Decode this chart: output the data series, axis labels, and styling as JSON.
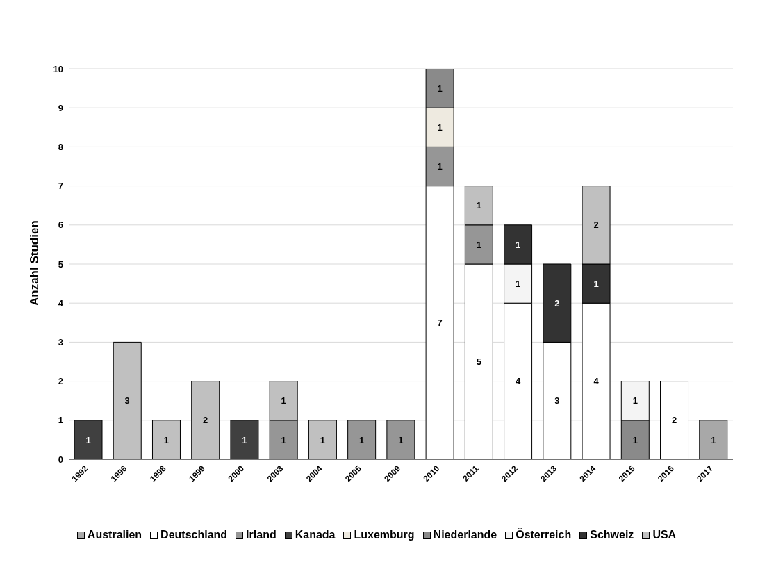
{
  "chart_data": {
    "type": "bar",
    "stacked": true,
    "ylabel": "Anzahl Studien",
    "categories": [
      "1992",
      "1996",
      "1998",
      "1999",
      "2000",
      "2003",
      "2004",
      "2005",
      "2009",
      "2010",
      "2011",
      "2012",
      "2013",
      "2014",
      "2015",
      "2016",
      "2017"
    ],
    "series": [
      {
        "name": "Australien",
        "color": "#a8a8a8",
        "values": [
          null,
          null,
          null,
          null,
          null,
          null,
          null,
          null,
          null,
          null,
          null,
          null,
          null,
          null,
          null,
          null,
          1
        ]
      },
      {
        "name": "Deutschland",
        "color": "#ffffff",
        "values": [
          null,
          null,
          null,
          null,
          null,
          null,
          null,
          null,
          null,
          7,
          5,
          4,
          3,
          4,
          null,
          2,
          null
        ]
      },
      {
        "name": "Irland",
        "color": "#969696",
        "values": [
          null,
          null,
          null,
          null,
          null,
          1,
          null,
          1,
          1,
          1,
          1,
          null,
          null,
          null,
          null,
          null,
          null
        ]
      },
      {
        "name": "Kanada",
        "color": "#404040",
        "values": [
          1,
          null,
          null,
          null,
          1,
          null,
          null,
          null,
          null,
          null,
          null,
          null,
          null,
          null,
          null,
          null,
          null
        ]
      },
      {
        "name": "Luxemburg",
        "color": "#eeeae0",
        "values": [
          null,
          null,
          null,
          null,
          null,
          null,
          null,
          null,
          null,
          1,
          null,
          null,
          null,
          null,
          null,
          null,
          null
        ]
      },
      {
        "name": "Niederlande",
        "color": "#8a8a8a",
        "values": [
          null,
          null,
          null,
          null,
          null,
          null,
          null,
          null,
          null,
          1,
          null,
          null,
          null,
          null,
          1,
          null,
          null
        ]
      },
      {
        "name": "Österreich",
        "color": "#f4f4f4",
        "values": [
          null,
          null,
          null,
          null,
          null,
          null,
          null,
          null,
          null,
          null,
          null,
          1,
          null,
          null,
          1,
          null,
          null
        ]
      },
      {
        "name": "Schweiz",
        "color": "#333333",
        "values": [
          null,
          null,
          null,
          null,
          null,
          null,
          null,
          null,
          null,
          null,
          null,
          1,
          2,
          1,
          null,
          null,
          null
        ]
      },
      {
        "name": "USA",
        "color": "#c0c0c0",
        "values": [
          null,
          3,
          1,
          2,
          null,
          1,
          1,
          null,
          null,
          null,
          1,
          null,
          null,
          2,
          null,
          null,
          null
        ]
      }
    ],
    "ylim": [
      0,
      10
    ],
    "yticks": [
      0,
      1,
      2,
      3,
      4,
      5,
      6,
      7,
      8,
      9,
      10
    ],
    "grid": "y",
    "legend": "bottom",
    "data_labels": true
  }
}
